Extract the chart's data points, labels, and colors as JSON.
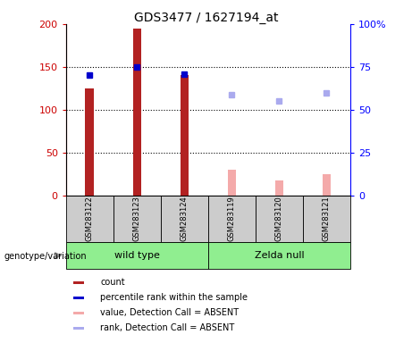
{
  "title": "GDS3477 / 1627194_at",
  "samples": [
    "GSM283122",
    "GSM283123",
    "GSM283124",
    "GSM283119",
    "GSM283120",
    "GSM283121"
  ],
  "count_values": [
    125,
    195,
    140,
    null,
    null,
    null
  ],
  "count_absent_values": [
    null,
    null,
    null,
    30,
    18,
    25
  ],
  "rank_present": [
    70,
    75,
    71,
    null,
    null,
    null
  ],
  "rank_absent": [
    null,
    null,
    null,
    59,
    55,
    60
  ],
  "left_ylim": [
    0,
    200
  ],
  "right_ylim": [
    0,
    100
  ],
  "left_yticks": [
    0,
    50,
    100,
    150,
    200
  ],
  "right_yticks": [
    0,
    25,
    50,
    75,
    100
  ],
  "right_yticklabels": [
    "0",
    "25",
    "50",
    "75",
    "100%"
  ],
  "bar_color_present": "#b22222",
  "bar_color_absent": "#f4aaaa",
  "rank_color_present": "#0000cc",
  "rank_color_absent": "#aaaaee",
  "groups_info": [
    {
      "label": "wild type",
      "start": 0,
      "end": 2,
      "color": "#90ee90"
    },
    {
      "label": "Zelda null",
      "start": 3,
      "end": 5,
      "color": "#90ee90"
    }
  ],
  "legend_items": [
    {
      "label": "count",
      "color": "#b22222"
    },
    {
      "label": "percentile rank within the sample",
      "color": "#0000cc"
    },
    {
      "label": "value, Detection Call = ABSENT",
      "color": "#f4aaaa"
    },
    {
      "label": "rank, Detection Call = ABSENT",
      "color": "#aaaaee"
    }
  ],
  "bar_width": 0.18,
  "fig_width": 4.61,
  "fig_height": 3.84,
  "dpi": 100
}
